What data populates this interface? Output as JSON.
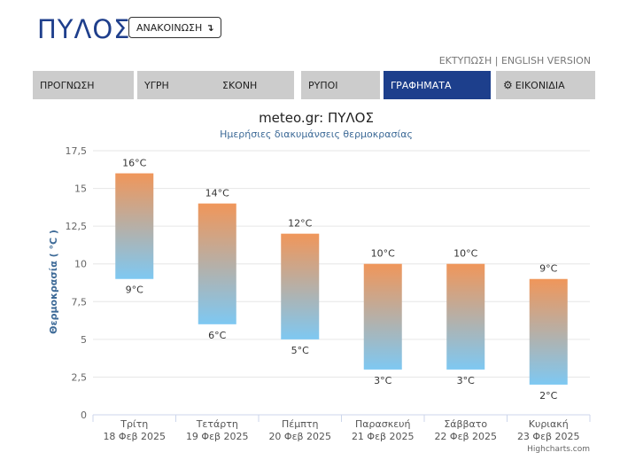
{
  "header": {
    "city": "ΠΥΛΟΣ",
    "announce_label": "ΑΝΑΚΟΙΝΩΣΗ",
    "announce_icon": "arrow-down-icon"
  },
  "toplinks": {
    "print": "ΕΚΤΥΠΩΣΗ",
    "separator": " | ",
    "english": "ENGLISH VERSION"
  },
  "tabs": [
    {
      "label": "ΠΡΟΓΝΩΣΗ"
    },
    {
      "label": "ΥΓΡΗ"
    },
    {
      "label": "ΣΚΟΝΗ"
    },
    {
      "label": "ΡΥΠΟΙ"
    },
    {
      "label": "ΓΡΑΦΗΜΑΤΑ",
      "active": true
    },
    {
      "label": "ΕΙΚΟΝΙΔΙΑ",
      "icon": "gear-icon"
    }
  ],
  "colors": {
    "brand": "#1f3f8c",
    "active_tab": "#1d3f8c",
    "tab_bg": "#cccccc",
    "bar_top": "#f0965a",
    "bar_bottom": "#7ec8f2"
  },
  "credits": "Highcharts.com",
  "chart_data": {
    "type": "columnrange",
    "title": "meteo.gr: ΠΥΛΟΣ",
    "subtitle": "Ημερήσιες διακυμάνσεις θερμοκρασίας",
    "ylabel": "Θερμοκρασία ( °C )",
    "ylim": [
      0,
      17.5
    ],
    "yticks": [
      "0",
      "2,5",
      "5",
      "7,5",
      "10",
      "12,5",
      "15",
      "17,5"
    ],
    "grid": true,
    "unit": "°C",
    "categories": [
      {
        "day": "Τρίτη",
        "date": "18 Φεβ 2025"
      },
      {
        "day": "Τετάρτη",
        "date": "19 Φεβ 2025"
      },
      {
        "day": "Πέμπτη",
        "date": "20 Φεβ 2025"
      },
      {
        "day": "Παρασκευή",
        "date": "21 Φεβ 2025"
      },
      {
        "day": "Σάββατο",
        "date": "22 Φεβ 2025"
      },
      {
        "day": "Κυριακή",
        "date": "23 Φεβ 2025"
      }
    ],
    "low": [
      9,
      6,
      5,
      3,
      3,
      2
    ],
    "high": [
      16,
      14,
      12,
      10,
      10,
      9
    ]
  }
}
